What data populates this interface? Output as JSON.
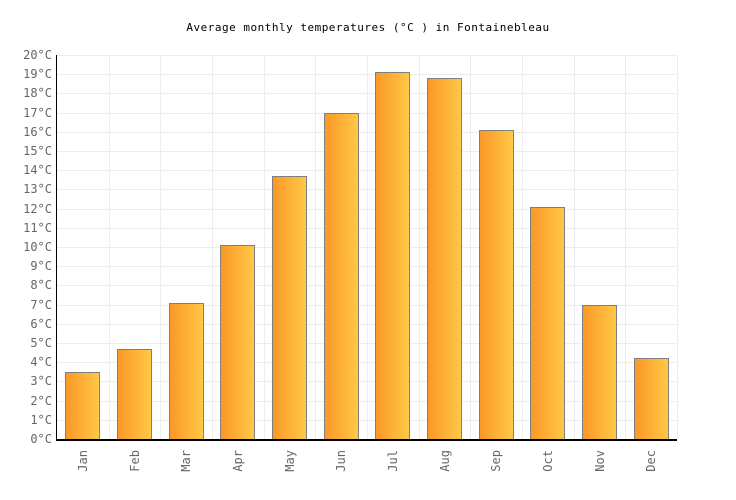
{
  "title": "Average monthly temperatures (°C ) in Fontainebleau",
  "chart_data": {
    "type": "bar",
    "title": "Average monthly temperatures (°C ) in Fontainebleau",
    "categories": [
      "Jan",
      "Feb",
      "Mar",
      "Apr",
      "May",
      "Jun",
      "Jul",
      "Aug",
      "Sep",
      "Oct",
      "Nov",
      "Dec"
    ],
    "values": [
      3.5,
      4.7,
      7.1,
      10.1,
      13.7,
      17.0,
      19.1,
      18.8,
      16.1,
      12.1,
      7.0,
      4.2
    ],
    "xlabel": "",
    "ylabel": "",
    "ylim": [
      0,
      20
    ],
    "ytick_step": 1,
    "ytick_suffix": "°C",
    "ytick_labels": [
      "0°C",
      "1°C",
      "2°C",
      "3°C",
      "4°C",
      "5°C",
      "6°C",
      "7°C",
      "8°C",
      "9°C",
      "10°C",
      "11°C",
      "12°C",
      "13°C",
      "14°C",
      "15°C",
      "16°C",
      "17°C",
      "18°C",
      "19°C",
      "20°C"
    ],
    "grid": true,
    "legend_position": "none",
    "colors": {
      "bar_gradient_left": "#FA9828",
      "bar_gradient_right": "#FFC846",
      "bar_border": "#7F7F7F",
      "axis": "#000000",
      "grid": "#EDEDED",
      "tick_label": "#666666",
      "title": "#000000",
      "background": "#FFFFFF"
    }
  }
}
